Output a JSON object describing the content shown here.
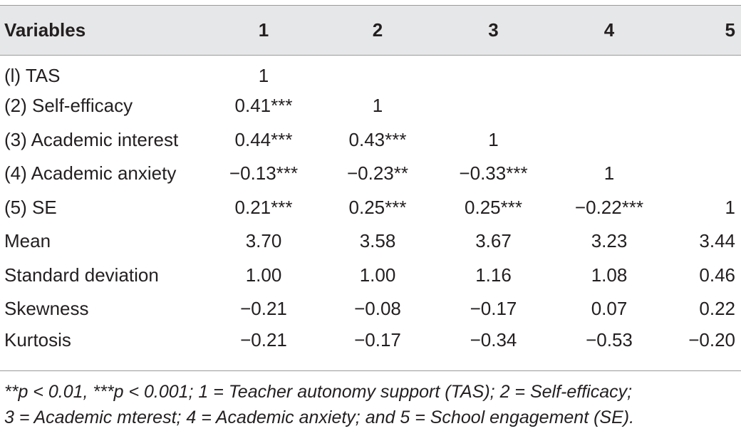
{
  "table": {
    "headers": [
      "Variables",
      "1",
      "2",
      "3",
      "4",
      "5"
    ],
    "rows": [
      {
        "label": "(l) TAS",
        "cells": [
          "1",
          "",
          "",
          "",
          ""
        ]
      },
      {
        "label": "(2) Self-efficacy",
        "cells": [
          "0.41***",
          "1",
          "",
          "",
          ""
        ]
      },
      {
        "label": "(3) Academic interest",
        "cells": [
          "0.44***",
          "0.43***",
          "1",
          "",
          ""
        ]
      },
      {
        "label": "(4) Academic anxiety",
        "cells": [
          "−0.13***",
          "−0.23**",
          "−0.33***",
          "1",
          ""
        ]
      },
      {
        "label": "(5) SE",
        "cells": [
          "0.21***",
          "0.25***",
          "0.25***",
          "−0.22***",
          "1"
        ]
      },
      {
        "label": "Mean",
        "cells": [
          "3.70",
          "3.58",
          "3.67",
          "3.23",
          "3.44"
        ]
      },
      {
        "label": "Standard deviation",
        "cells": [
          "1.00",
          "1.00",
          "1.16",
          "1.08",
          "0.46"
        ]
      },
      {
        "label": "Skewness",
        "cells": [
          "−0.21",
          "−0.08",
          "−0.17",
          "0.07",
          "0.22"
        ]
      },
      {
        "label": "Kurtosis",
        "cells": [
          "−0.21",
          "−0.17",
          "−0.34",
          "−0.53",
          "−0.20"
        ]
      }
    ]
  },
  "footnote": {
    "line1": "**p < 0.01, ***p < 0.001; 1 = Teacher autonomy support (TAS); 2 = Self-efficacy;",
    "line2": "3 = Academic mterest; 4 = Academic anxiety; and 5 = School engagement (SE)."
  }
}
